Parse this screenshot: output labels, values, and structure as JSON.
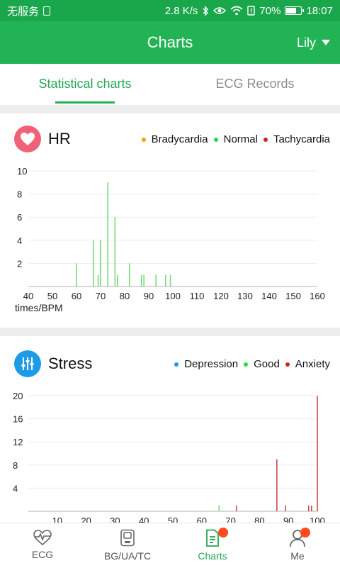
{
  "status_bar": {
    "carrier": "无服务",
    "speed": "2.8 K/s",
    "battery": "70%",
    "battery_level": 0.7,
    "time": "18:07"
  },
  "header": {
    "title": "Charts",
    "user": "Lily"
  },
  "tabs": [
    {
      "label": "Statistical charts",
      "active": true
    },
    {
      "label": "ECG Records",
      "active": false
    }
  ],
  "hr": {
    "title": "HR",
    "legend": [
      {
        "label": "Bradycardia",
        "color": "#f0a30a"
      },
      {
        "label": "Normal",
        "color": "#27d84a"
      },
      {
        "label": "Tachycardia",
        "color": "#d42020"
      }
    ]
  },
  "stress": {
    "title": "Stress",
    "legend": [
      {
        "label": "Depression",
        "color": "#2196f3"
      },
      {
        "label": "Good",
        "color": "#27d84a"
      },
      {
        "label": "Anxiety",
        "color": "#d42020"
      }
    ]
  },
  "chart_data": [
    {
      "type": "bar",
      "title": "HR",
      "xlabel": "times/BPM",
      "ylabel": "",
      "xlim": [
        40,
        160
      ],
      "ylim": [
        0,
        10
      ],
      "xticks": [
        40,
        50,
        60,
        70,
        80,
        90,
        100,
        110,
        120,
        130,
        140,
        150,
        160
      ],
      "yticks": [
        2,
        4,
        6,
        8,
        10
      ],
      "grid": true,
      "legend": "top-right",
      "series": [
        {
          "name": "Normal",
          "color": "#7ad87a",
          "x": [
            60,
            67,
            69,
            70,
            73,
            76,
            77,
            82,
            87,
            88,
            93,
            97,
            99
          ],
          "values": [
            2,
            4,
            1,
            4,
            9,
            6,
            1,
            2,
            1,
            1,
            1,
            1,
            1
          ]
        }
      ]
    },
    {
      "type": "bar",
      "title": "Stress",
      "xlabel": "",
      "ylabel": "",
      "xlim": [
        0,
        100
      ],
      "ylim": [
        0,
        20
      ],
      "xticks": [
        10,
        20,
        30,
        40,
        50,
        60,
        70,
        80,
        90,
        100
      ],
      "yticks": [
        4,
        8,
        12,
        16,
        20
      ],
      "grid": true,
      "legend": "top-right",
      "series": [
        {
          "name": "Good",
          "color": "#7ad87a",
          "x": [
            66
          ],
          "values": [
            1
          ]
        },
        {
          "name": "Anxiety",
          "color": "#c84c4c",
          "x": [
            72,
            86,
            89,
            97,
            98,
            100
          ],
          "values": [
            1,
            9,
            1,
            1,
            1,
            20
          ]
        }
      ]
    }
  ],
  "bottom_nav": [
    {
      "label": "ECG",
      "icon": "heart-pulse-icon",
      "active": false,
      "badge": false
    },
    {
      "label": "BG/UA/TC",
      "icon": "meter-device-icon",
      "active": false,
      "badge": false
    },
    {
      "label": "Charts",
      "icon": "chart-document-icon",
      "active": true,
      "badge": true
    },
    {
      "label": "Me",
      "icon": "person-icon",
      "active": false,
      "badge": true
    }
  ]
}
